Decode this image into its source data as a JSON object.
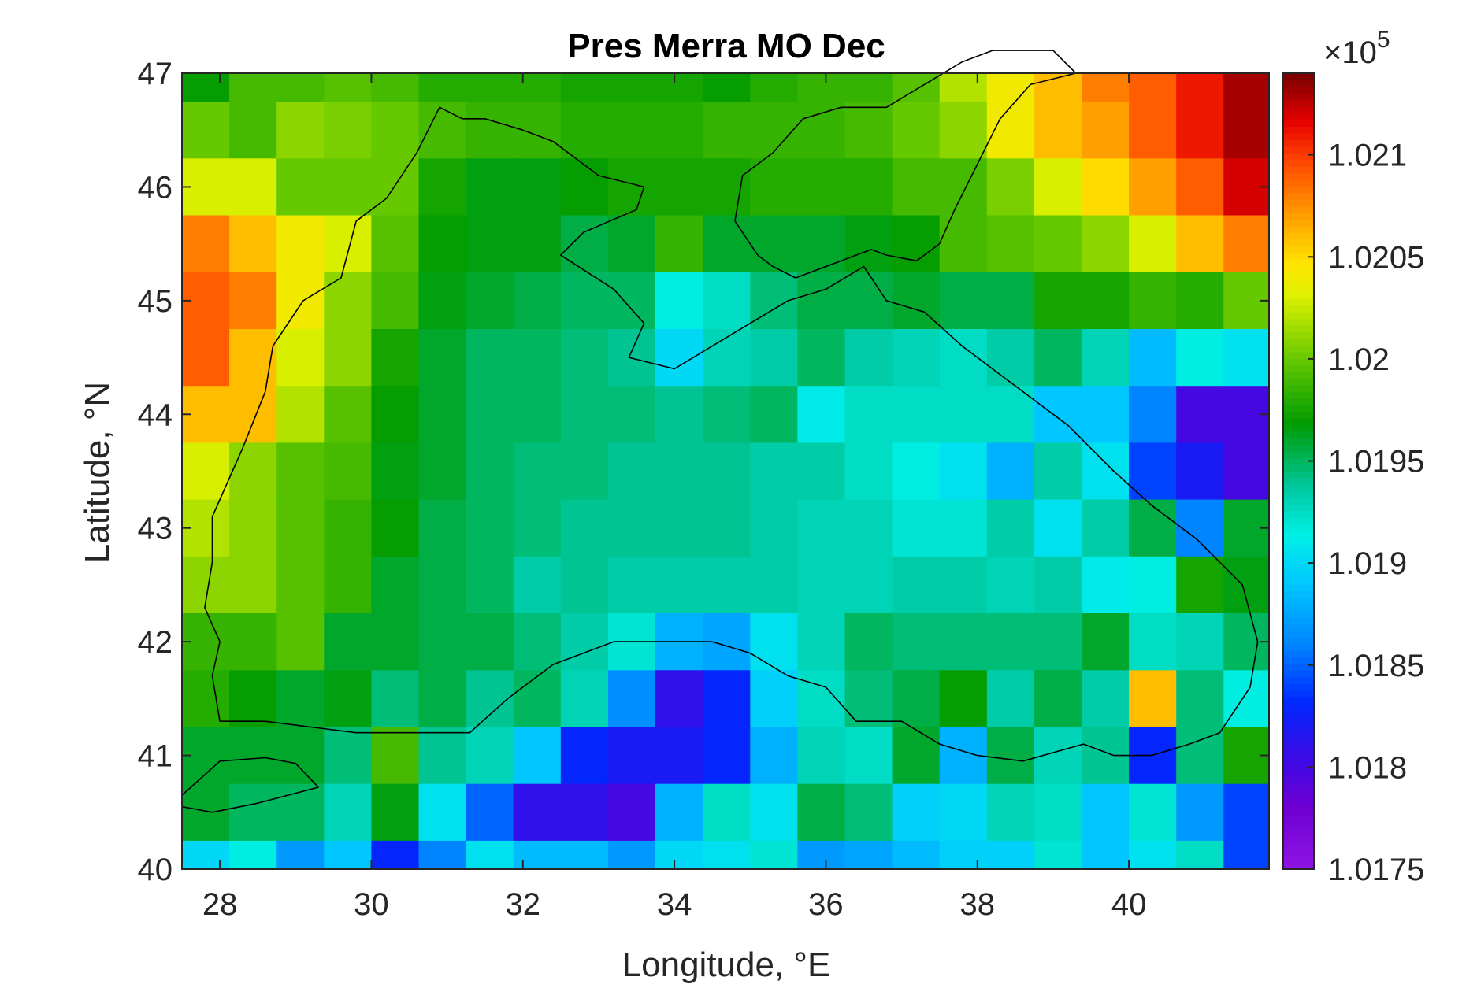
{
  "chart_data": {
    "type": "heatmap",
    "title": "Pres Merra MO Dec",
    "xlabel": "Longitude, °E",
    "ylabel": "Latitude, °N",
    "x": [
      27.8125,
      28.4375,
      29.0625,
      29.6875,
      30.3125,
      30.9375,
      31.5625,
      32.1875,
      32.8125,
      33.4375,
      34.0625,
      34.6875,
      35.3125,
      35.9375,
      36.5625,
      37.1875,
      37.8125,
      38.4375,
      39.0625,
      39.6875,
      40.3125,
      40.9375,
      41.5625
    ],
    "y": [
      47.0,
      46.5,
      46.0,
      45.5,
      45.0,
      44.5,
      44.0,
      43.5,
      43.0,
      42.5,
      42.0,
      41.5,
      41.0,
      40.5,
      40.0
    ],
    "xlim": [
      27.5,
      41.85
    ],
    "ylim": [
      40,
      47
    ],
    "xticks": [
      "28",
      "30",
      "32",
      "34",
      "36",
      "38",
      "40"
    ],
    "yticks": [
      "40",
      "41",
      "42",
      "43",
      "44",
      "45",
      "46",
      "47"
    ],
    "colorbar": {
      "exponent_label": "×10",
      "exponent_power": "5",
      "range": [
        1.0175,
        1.0214
      ],
      "ticks": [
        "1.0175",
        "1.018",
        "1.0185",
        "1.019",
        "1.0195",
        "1.02",
        "1.0205",
        "1.021"
      ],
      "colormap": "jet-like (purple–blue–cyan–green–yellow–red–dark red)"
    },
    "values": [
      [
        1.0197,
        1.0199,
        1.0199,
        1.01995,
        1.0199,
        1.0198,
        1.0198,
        1.0198,
        1.01975,
        1.01975,
        1.01975,
        1.0197,
        1.0198,
        1.01985,
        1.01985,
        1.01995,
        1.0202,
        1.0204,
        1.0206,
        1.0208,
        1.0209,
        1.0211,
        1.0213
      ],
      [
        1.02,
        1.0199,
        1.0201,
        1.02005,
        1.02,
        1.0199,
        1.01985,
        1.01985,
        1.0198,
        1.0198,
        1.0198,
        1.01985,
        1.01985,
        1.01985,
        1.0199,
        1.02,
        1.0201,
        1.0204,
        1.0206,
        1.0207,
        1.0209,
        1.0211,
        1.0213
      ],
      [
        1.0203,
        1.0203,
        1.02,
        1.02,
        1.02,
        1.01975,
        1.01965,
        1.01965,
        1.0197,
        1.01975,
        1.01975,
        1.01975,
        1.0198,
        1.0198,
        1.0198,
        1.0199,
        1.0199,
        1.02005,
        1.0203,
        1.0205,
        1.0207,
        1.0209,
        1.0212
      ],
      [
        1.0208,
        1.0206,
        1.0204,
        1.0203,
        1.01995,
        1.0197,
        1.01965,
        1.01965,
        1.01955,
        1.0196,
        1.01985,
        1.0196,
        1.0196,
        1.0196,
        1.01965,
        1.0197,
        1.0199,
        1.01995,
        1.02,
        1.0201,
        1.0203,
        1.0206,
        1.0208
      ],
      [
        1.0209,
        1.0208,
        1.0204,
        1.0201,
        1.0199,
        1.01965,
        1.0196,
        1.01955,
        1.0195,
        1.0195,
        1.01915,
        1.01925,
        1.01945,
        1.01955,
        1.01955,
        1.0196,
        1.01955,
        1.01955,
        1.01975,
        1.01975,
        1.01985,
        1.0198,
        1.02
      ],
      [
        1.0209,
        1.0206,
        1.0203,
        1.0201,
        1.01975,
        1.0196,
        1.0195,
        1.0195,
        1.01945,
        1.0194,
        1.019,
        1.0193,
        1.01935,
        1.0195,
        1.01935,
        1.0193,
        1.01925,
        1.01935,
        1.0195,
        1.0193,
        1.01885,
        1.01915,
        1.01905
      ],
      [
        1.0206,
        1.0206,
        1.0202,
        1.01995,
        1.0197,
        1.0196,
        1.0195,
        1.0195,
        1.01945,
        1.01945,
        1.0194,
        1.01945,
        1.0195,
        1.0191,
        1.01925,
        1.01925,
        1.01925,
        1.01925,
        1.0189,
        1.0189,
        1.0186,
        1.018,
        1.018
      ],
      [
        1.0203,
        1.0201,
        1.01995,
        1.0199,
        1.01965,
        1.0196,
        1.0195,
        1.01945,
        1.01945,
        1.0194,
        1.0194,
        1.0194,
        1.01935,
        1.01935,
        1.01925,
        1.01915,
        1.01905,
        1.0188,
        1.01935,
        1.01905,
        1.0184,
        1.0182,
        1.018
      ],
      [
        1.0202,
        1.0201,
        1.01995,
        1.01985,
        1.0197,
        1.01955,
        1.0195,
        1.01945,
        1.0194,
        1.0194,
        1.0194,
        1.0194,
        1.01935,
        1.0193,
        1.0193,
        1.0192,
        1.0192,
        1.01935,
        1.01905,
        1.01935,
        1.01955,
        1.0186,
        1.0196
      ],
      [
        1.0201,
        1.0201,
        1.01995,
        1.01985,
        1.0196,
        1.01955,
        1.0195,
        1.01935,
        1.0194,
        1.01935,
        1.01935,
        1.01935,
        1.01935,
        1.0193,
        1.0193,
        1.01935,
        1.01935,
        1.0193,
        1.01935,
        1.0191,
        1.01915,
        1.01975,
        1.01965
      ],
      [
        1.01985,
        1.01985,
        1.01995,
        1.0196,
        1.0196,
        1.01955,
        1.01955,
        1.01945,
        1.01935,
        1.0192,
        1.0188,
        1.01875,
        1.01905,
        1.0193,
        1.0195,
        1.01945,
        1.01945,
        1.01945,
        1.01945,
        1.0196,
        1.01925,
        1.0193,
        1.0195
      ],
      [
        1.0198,
        1.0197,
        1.0196,
        1.01965,
        1.01945,
        1.01955,
        1.0194,
        1.0195,
        1.0193,
        1.01865,
        1.0181,
        1.0183,
        1.01895,
        1.01925,
        1.01945,
        1.01955,
        1.0197,
        1.01935,
        1.01955,
        1.01935,
        1.0206,
        1.01945,
        1.01915
      ],
      [
        1.0196,
        1.0196,
        1.0196,
        1.01945,
        1.0199,
        1.0194,
        1.0193,
        1.0189,
        1.0183,
        1.0182,
        1.0182,
        1.0183,
        1.0188,
        1.0193,
        1.01925,
        1.0196,
        1.0188,
        1.01955,
        1.0193,
        1.0194,
        1.0183,
        1.01945,
        1.01975
      ],
      [
        1.0196,
        1.0195,
        1.0195,
        1.0193,
        1.01965,
        1.01905,
        1.0185,
        1.0181,
        1.0181,
        1.018,
        1.0188,
        1.01925,
        1.01905,
        1.01955,
        1.01945,
        1.01895,
        1.019,
        1.0193,
        1.01925,
        1.0189,
        1.0192,
        1.0187,
        1.0184
      ],
      [
        1.019,
        1.01915,
        1.0187,
        1.0189,
        1.0183,
        1.0186,
        1.01905,
        1.01885,
        1.01885,
        1.0187,
        1.019,
        1.01905,
        1.0192,
        1.0187,
        1.01875,
        1.01885,
        1.01895,
        1.01895,
        1.0192,
        1.0189,
        1.01905,
        1.01925,
        1.0184
      ]
    ]
  }
}
